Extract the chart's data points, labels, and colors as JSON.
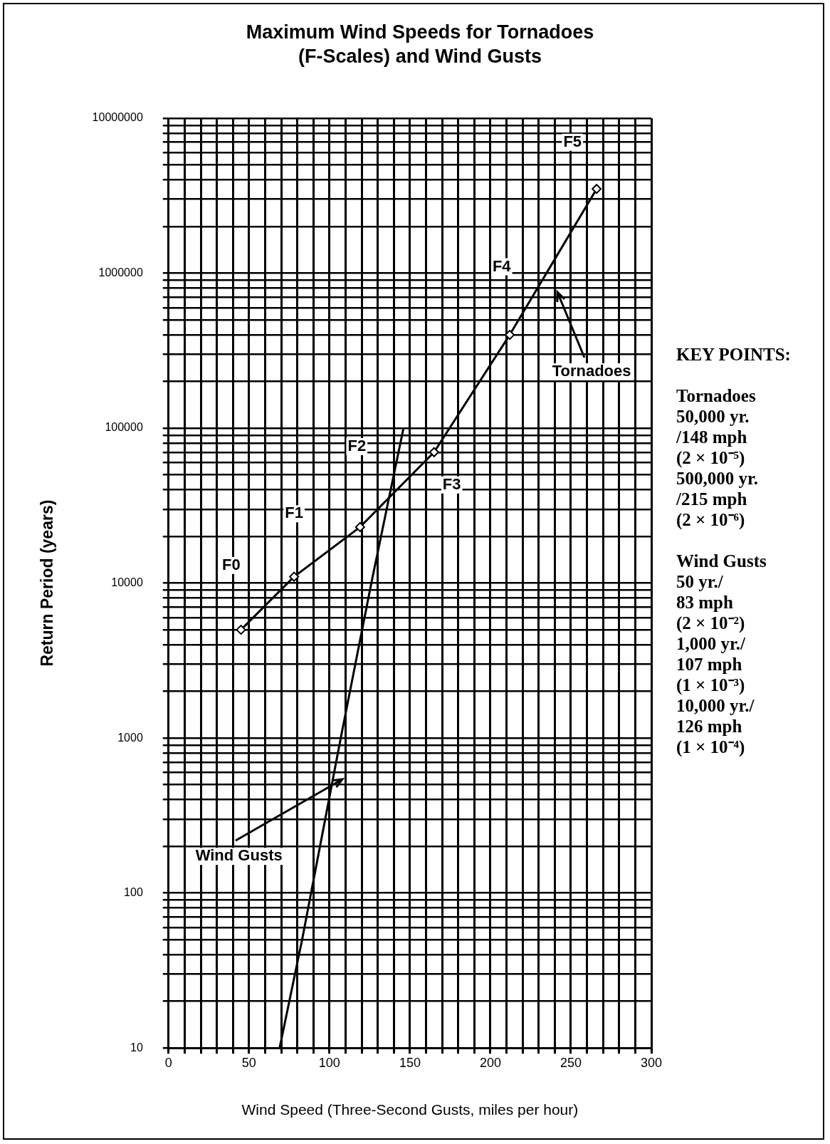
{
  "chart_data": {
    "type": "line",
    "title": "Maximum Wind Speeds for Tornadoes (F-Scales) and Wind Gusts",
    "xlabel": "Wind Speed (Three-Second Gusts, miles per hour)",
    "ylabel": "Return Period (years)",
    "series": [
      {
        "name": "Tornadoes",
        "color": "#000000",
        "marker": "diamond",
        "x": [
          45,
          78,
          119,
          165,
          212,
          266
        ],
        "values": [
          5000,
          11000,
          23000,
          70000,
          400000,
          3500000
        ]
      },
      {
        "name": "Wind Gusts",
        "color": "#000000",
        "marker": "none",
        "x": [
          69,
          83,
          107,
          126,
          146
        ],
        "values": [
          10,
          50,
          1000,
          10000,
          100000
        ]
      }
    ],
    "log": "y",
    "grid": true,
    "legend": false,
    "xlim": [
      0,
      300
    ],
    "xticks": [
      0,
      {
        "value": 10,
        "label": null
      },
      {
        "value": 20,
        "label": null
      },
      {
        "value": 30,
        "label": null
      },
      {
        "value": 40,
        "label": null
      },
      50,
      {
        "value": 60,
        "label": null
      },
      {
        "value": 70,
        "label": null
      },
      {
        "value": 80,
        "label": null
      },
      {
        "value": 90,
        "label": null
      },
      100,
      {
        "value": 110,
        "label": null
      },
      {
        "value": 120,
        "label": null
      },
      {
        "value": 130,
        "label": null
      },
      {
        "value": 140,
        "label": null
      },
      150,
      {
        "value": 160,
        "label": null
      },
      {
        "value": 170,
        "label": null
      },
      {
        "value": 180,
        "label": null
      },
      {
        "value": 190,
        "label": null
      },
      200,
      {
        "value": 210,
        "label": null
      },
      {
        "value": 220,
        "label": null
      },
      {
        "value": 230,
        "label": null
      },
      {
        "value": 240,
        "label": null
      },
      250,
      {
        "value": 260,
        "label": null
      },
      {
        "value": 270,
        "label": null
      },
      {
        "value": 280,
        "label": null
      },
      {
        "value": 290,
        "label": null
      },
      300
    ],
    "ylim": [
      10,
      10000000
    ],
    "yticks": [
      10,
      {
        "value": 20,
        "label": null
      },
      {
        "value": 30,
        "label": null
      },
      {
        "value": 40,
        "label": null
      },
      {
        "value": 50,
        "label": null
      },
      {
        "value": 60,
        "label": null
      },
      {
        "value": 70,
        "label": null
      },
      {
        "value": 80,
        "label": null
      },
      {
        "value": 90,
        "label": null
      },
      100,
      {
        "value": 200,
        "label": null
      },
      {
        "value": 300,
        "label": null
      },
      {
        "value": 400,
        "label": null
      },
      {
        "value": 500,
        "label": null
      },
      {
        "value": 600,
        "label": null
      },
      {
        "value": 700,
        "label": null
      },
      {
        "value": 800,
        "label": null
      },
      {
        "value": 900,
        "label": null
      },
      1000,
      {
        "value": 2000,
        "label": null
      },
      {
        "value": 3000,
        "label": null
      },
      {
        "value": 4000,
        "label": null
      },
      {
        "value": 5000,
        "label": null
      },
      {
        "value": 6000,
        "label": null
      },
      {
        "value": 7000,
        "label": null
      },
      {
        "value": 8000,
        "label": null
      },
      {
        "value": 9000,
        "label": null
      },
      10000,
      {
        "value": 20000,
        "label": null
      },
      {
        "value": 30000,
        "label": null
      },
      {
        "value": 40000,
        "label": null
      },
      {
        "value": 50000,
        "label": null
      },
      {
        "value": 60000,
        "label": null
      },
      {
        "value": 70000,
        "label": null
      },
      {
        "value": 80000,
        "label": null
      },
      {
        "value": 90000,
        "label": null
      },
      100000,
      {
        "value": 200000,
        "label": null
      },
      {
        "value": 300000,
        "label": null
      },
      {
        "value": 400000,
        "label": null
      },
      {
        "value": 500000,
        "label": null
      },
      {
        "value": 600000,
        "label": null
      },
      {
        "value": 700000,
        "label": null
      },
      {
        "value": 800000,
        "label": null
      },
      {
        "value": 900000,
        "label": null
      },
      1000000,
      {
        "value": 2000000,
        "label": null
      },
      {
        "value": 3000000,
        "label": null
      },
      {
        "value": 4000000,
        "label": null
      },
      {
        "value": 5000000,
        "label": null
      },
      {
        "value": 6000000,
        "label": null
      },
      {
        "value": 7000000,
        "label": null
      },
      {
        "value": 8000000,
        "label": null
      },
      {
        "value": 9000000,
        "label": null
      },
      10000000
    ],
    "annotations": [
      {
        "text": "F0",
        "x": 39,
        "y": 13000
      },
      {
        "text": "F1",
        "x": 78,
        "y": 28000
      },
      {
        "text": "F2",
        "x": 117,
        "y": 76000
      },
      {
        "text": "F3",
        "x": 176,
        "y": 43000
      },
      {
        "text": "F4",
        "x": 207,
        "y": 1100000
      },
      {
        "text": "F5",
        "x": 251,
        "y": 7000000
      },
      "KEY POINTS:",
      "Tornadoes",
      "50,000 yr.",
      "/148 mph",
      "(2 × 10⁻⁵)",
      "500,000 yr.",
      "/215 mph",
      "(2 × 10⁻⁶)",
      "Wind Gusts",
      "50 yr./",
      "83 mph",
      "(2 × 10⁻²)",
      "1,000 yr./",
      "107 mph",
      "(1 × 10⁻³)",
      "10,000 yr./",
      "126 mph",
      "(1 × 10⁻⁴)"
    ]
  }
}
